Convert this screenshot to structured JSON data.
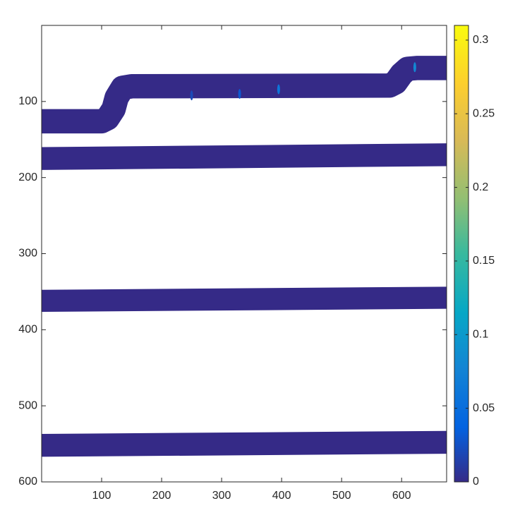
{
  "chart_data": {
    "type": "heatmap",
    "title": "",
    "xlabel": "",
    "ylabel": "",
    "xlim": [
      0,
      675
    ],
    "ylim": [
      600,
      0
    ],
    "y_axis_direction": "reversed",
    "x_ticks": [
      "100",
      "200",
      "300",
      "400",
      "500",
      "600"
    ],
    "y_ticks": [
      "100",
      "200",
      "300",
      "400",
      "500",
      "600"
    ],
    "background_value": "NaN (blank)",
    "bands": [
      {
        "value": 0,
        "path": [
          [
            0,
            126
          ],
          [
            100,
            126
          ],
          [
            110,
            122
          ],
          [
            120,
            110
          ],
          [
            125,
            95
          ],
          [
            135,
            82
          ],
          [
            150,
            80
          ],
          [
            580,
            79
          ],
          [
            590,
            75
          ],
          [
            600,
            64
          ],
          [
            610,
            57
          ],
          [
            625,
            56
          ],
          [
            675,
            56
          ]
        ],
        "thickness": 32
      },
      {
        "value": 0,
        "path": [
          [
            0,
            175
          ],
          [
            675,
            170
          ]
        ],
        "thickness": 30
      },
      {
        "value": 0,
        "path": [
          [
            0,
            362
          ],
          [
            675,
            358
          ]
        ],
        "thickness": 29
      },
      {
        "value": 0,
        "path": [
          [
            0,
            552
          ],
          [
            675,
            548
          ]
        ],
        "thickness": 30
      }
    ],
    "hotspots": [
      {
        "x": 395,
        "y": 84,
        "value": 0.06
      },
      {
        "x": 622,
        "y": 55,
        "value": 0.08
      },
      {
        "x": 330,
        "y": 90,
        "value": 0.03
      },
      {
        "x": 250,
        "y": 92,
        "value": 0.02
      }
    ],
    "colorbar": {
      "colormap": "parula",
      "range": [
        0,
        0.31
      ],
      "ticks": [
        "0",
        "0.05",
        "0.1",
        "0.15",
        "0.2",
        "0.25",
        "0.3"
      ]
    },
    "grid": false,
    "box": true
  }
}
